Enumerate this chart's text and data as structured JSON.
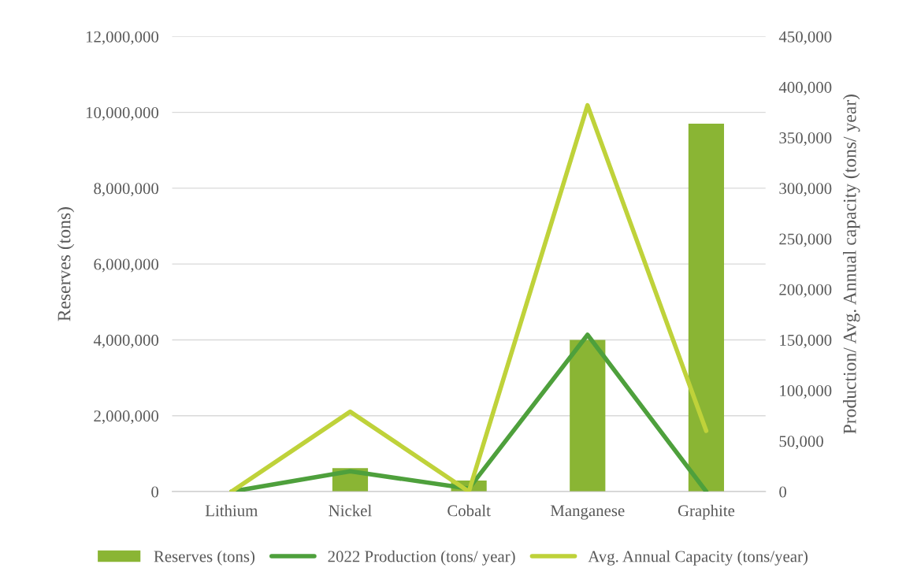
{
  "chart_data": {
    "type": "bar",
    "categories": [
      "Lithium",
      "Nickel",
      "Cobalt",
      "Manganese",
      "Graphite"
    ],
    "ylabel": "Reserves (tons)",
    "y2label": "Production/ Avg. Annual capacity (tons/ year)",
    "ylim": [
      0,
      12000000
    ],
    "yticks": [
      0,
      {
        "value": 2000000,
        "label": "2,000,000"
      },
      {
        "value": 4000000,
        "label": "4,000,000"
      },
      {
        "value": 6000000,
        "label": "6,000,000"
      },
      {
        "value": 8000000,
        "label": "8,000,000"
      },
      {
        "value": 10000000,
        "label": "10,000,000"
      },
      {
        "value": 12000000,
        "label": "12,000,000"
      }
    ],
    "y2lim": [
      0,
      450000
    ],
    "y2ticks": [
      0,
      {
        "value": 50000,
        "label": "50,000"
      },
      {
        "value": 100000,
        "label": "100,000"
      },
      {
        "value": 150000,
        "label": "150,000"
      },
      {
        "value": 200000,
        "label": "200,000"
      },
      {
        "value": 250000,
        "label": "250,000"
      },
      {
        "value": 300000,
        "label": "300,000"
      },
      {
        "value": 350000,
        "label": "350,000"
      },
      {
        "value": 400000,
        "label": "400,000"
      },
      {
        "value": 450000,
        "label": "450,000"
      }
    ],
    "grid": "y",
    "legend": "bottom",
    "series": [
      {
        "name": "Reserves (tons)",
        "color": "#8ab534",
        "values": [
          0,
          620000,
          290000,
          4000000,
          9700000
        ]
      },
      {
        "name": "2022 Production (tons/ year)",
        "type": "line",
        "axis": "y2",
        "color": "#4ea03c",
        "values": [
          0,
          20000,
          3000,
          155000,
          0
        ]
      },
      {
        "name": "Avg. Annual Capacity (tons/year)",
        "type": "line",
        "axis": "y2",
        "color": "#bfd23a",
        "values": [
          0,
          79000,
          0,
          382000,
          60000
        ]
      }
    ]
  }
}
